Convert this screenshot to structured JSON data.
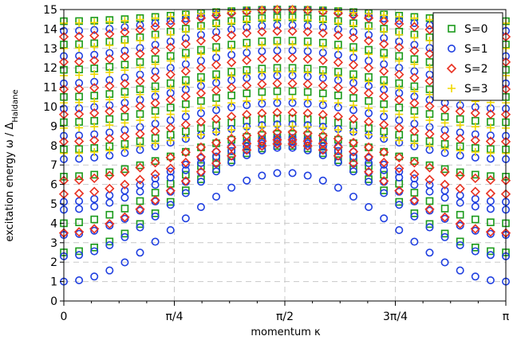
{
  "chart_data": {
    "type": "scatter",
    "title": "",
    "xlabel": "momentum κ",
    "ylabel_main": "excitation energy ω / Δ",
    "ylabel_sub": "Haldane",
    "xlim": [
      0,
      3.14159
    ],
    "ylim": [
      0,
      15
    ],
    "x_ticks": [
      {
        "value": 0,
        "label": "0"
      },
      {
        "value": 0.7854,
        "label": "π/4"
      },
      {
        "value": 1.5708,
        "label": "π/2"
      },
      {
        "value": 2.3562,
        "label": "3π/4"
      },
      {
        "value": 3.1416,
        "label": "π"
      }
    ],
    "y_ticks": [
      0,
      1,
      2,
      3,
      4,
      5,
      6,
      7,
      8,
      9,
      10,
      11,
      12,
      13,
      14,
      15
    ],
    "grid": true,
    "legend_position": "top-right",
    "n_points_per_band": 30,
    "series": [
      {
        "name": "S=0",
        "marker": "square",
        "color": "#1a9a1a",
        "bands": [
          {
            "min": 2.5,
            "max": 8.0,
            "peak": 1.5708
          },
          {
            "min": 4.0,
            "max": 8.3,
            "peak": 1.5708
          },
          {
            "min": 6.4,
            "max": 8.6,
            "peak": 1.5708
          },
          {
            "min": 7.8,
            "max": 9.4,
            "peak": 1.5708
          },
          {
            "min": 9.2,
            "max": 10.8,
            "peak": 1.5708
          },
          {
            "min": 10.5,
            "max": 12.0,
            "peak": 1.5708
          },
          {
            "min": 11.9,
            "max": 13.4,
            "peak": 1.5708
          },
          {
            "min": 13.2,
            "max": 14.6,
            "peak": 1.5708
          },
          {
            "min": 14.4,
            "max": 15.0,
            "peak": 1.5708
          }
        ]
      },
      {
        "name": "S=1",
        "marker": "circle",
        "color": "#1f3fe0",
        "bands": [
          {
            "min": 1.0,
            "max": 6.6,
            "peak": 1.5708
          },
          {
            "min": 2.3,
            "max": 7.9,
            "peak": 1.5708
          },
          {
            "min": 3.4,
            "max": 8.1,
            "peak": 1.5708
          },
          {
            "min": 4.7,
            "max": 8.2,
            "peak": 1.5708
          },
          {
            "min": 5.1,
            "max": 8.4,
            "peak": 1.5708
          },
          {
            "min": 7.3,
            "max": 9.1,
            "peak": 1.5708
          },
          {
            "min": 8.5,
            "max": 10.2,
            "peak": 1.5708
          },
          {
            "min": 9.9,
            "max": 11.6,
            "peak": 1.5708
          },
          {
            "min": 11.2,
            "max": 12.9,
            "peak": 1.5708
          },
          {
            "min": 12.6,
            "max": 14.2,
            "peak": 1.5708
          },
          {
            "min": 13.9,
            "max": 15.0,
            "peak": 1.5708
          }
        ]
      },
      {
        "name": "S=2",
        "marker": "diamond",
        "color": "#e83020",
        "bands": [
          {
            "min": 3.5,
            "max": 8.1,
            "peak": 1.5708
          },
          {
            "min": 5.5,
            "max": 8.3,
            "peak": 1.5708
          },
          {
            "min": 6.2,
            "max": 8.7,
            "peak": 1.5708
          },
          {
            "min": 8.2,
            "max": 9.7,
            "peak": 1.5708
          },
          {
            "min": 9.6,
            "max": 11.2,
            "peak": 1.5708
          },
          {
            "min": 10.9,
            "max": 12.5,
            "peak": 1.5708
          },
          {
            "min": 12.3,
            "max": 13.9,
            "peak": 1.5708
          },
          {
            "min": 13.6,
            "max": 15.0,
            "peak": 1.5708
          }
        ]
      },
      {
        "name": "S=3",
        "marker": "plus",
        "color": "#f0d800",
        "bands": [
          {
            "min": 7.6,
            "max": 9.0,
            "peak": 1.5708
          },
          {
            "min": 8.9,
            "max": 10.4,
            "peak": 1.5708
          },
          {
            "min": 10.2,
            "max": 11.8,
            "peak": 1.5708
          },
          {
            "min": 11.6,
            "max": 13.2,
            "peak": 1.5708
          },
          {
            "min": 13.0,
            "max": 14.5,
            "peak": 1.5708
          },
          {
            "min": 14.3,
            "max": 15.0,
            "peak": 1.5708
          }
        ]
      }
    ]
  }
}
